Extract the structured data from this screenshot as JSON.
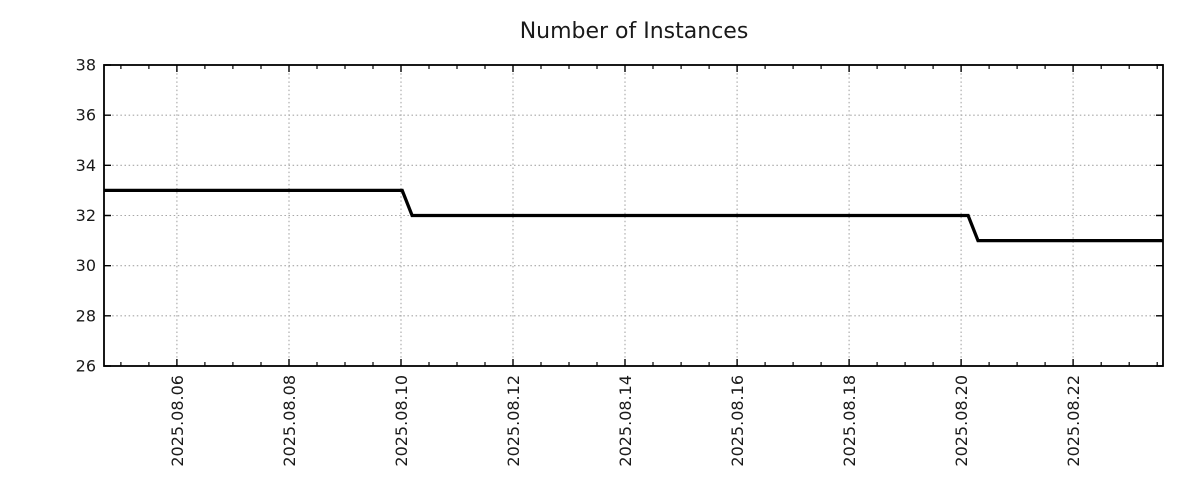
{
  "chart_data": {
    "type": "line",
    "title": "Number of Instances",
    "legend": null,
    "grid": true,
    "colors": {
      "background": "#ffffff",
      "border": "#000000",
      "grid": "#a6a6a6",
      "tick": "#000000",
      "text": "#1a1a1a",
      "line": "#000000"
    },
    "x_axis": {
      "type": "time",
      "range": [
        "2025-08-04 16:45",
        "2025-08-23 14:30"
      ],
      "major_ticks": [
        {
          "t": "2025-08-06 00:00",
          "label": "2025.08.06"
        },
        {
          "t": "2025-08-08 00:00",
          "label": "2025.08.08"
        },
        {
          "t": "2025-08-10 00:00",
          "label": "2025.08.10"
        },
        {
          "t": "2025-08-12 00:00",
          "label": "2025.08.12"
        },
        {
          "t": "2025-08-14 00:00",
          "label": "2025.08.14"
        },
        {
          "t": "2025-08-16 00:00",
          "label": "2025.08.16"
        },
        {
          "t": "2025-08-18 00:00",
          "label": "2025.08.18"
        },
        {
          "t": "2025-08-20 00:00",
          "label": "2025.08.20"
        },
        {
          "t": "2025-08-22 00:00",
          "label": "2025.08.22"
        }
      ],
      "minor_tick_hours": 12,
      "label_rotation_degrees": -90
    },
    "y_axis": {
      "range": [
        26,
        38
      ],
      "ticks": [
        26,
        28,
        30,
        32,
        34,
        36,
        38
      ],
      "tick_step": 2
    },
    "series": [
      {
        "name": "instances",
        "color": "#000000",
        "line_width": 3.3,
        "points": [
          {
            "t": "2025-08-04 16:45",
            "v": 33
          },
          {
            "t": "2025-08-10 00:30",
            "v": 33
          },
          {
            "t": "2025-08-10 04:45",
            "v": 32
          },
          {
            "t": "2025-08-20 03:00",
            "v": 32
          },
          {
            "t": "2025-08-20 07:15",
            "v": 31
          },
          {
            "t": "2025-08-23 14:30",
            "v": 31
          }
        ]
      }
    ]
  }
}
